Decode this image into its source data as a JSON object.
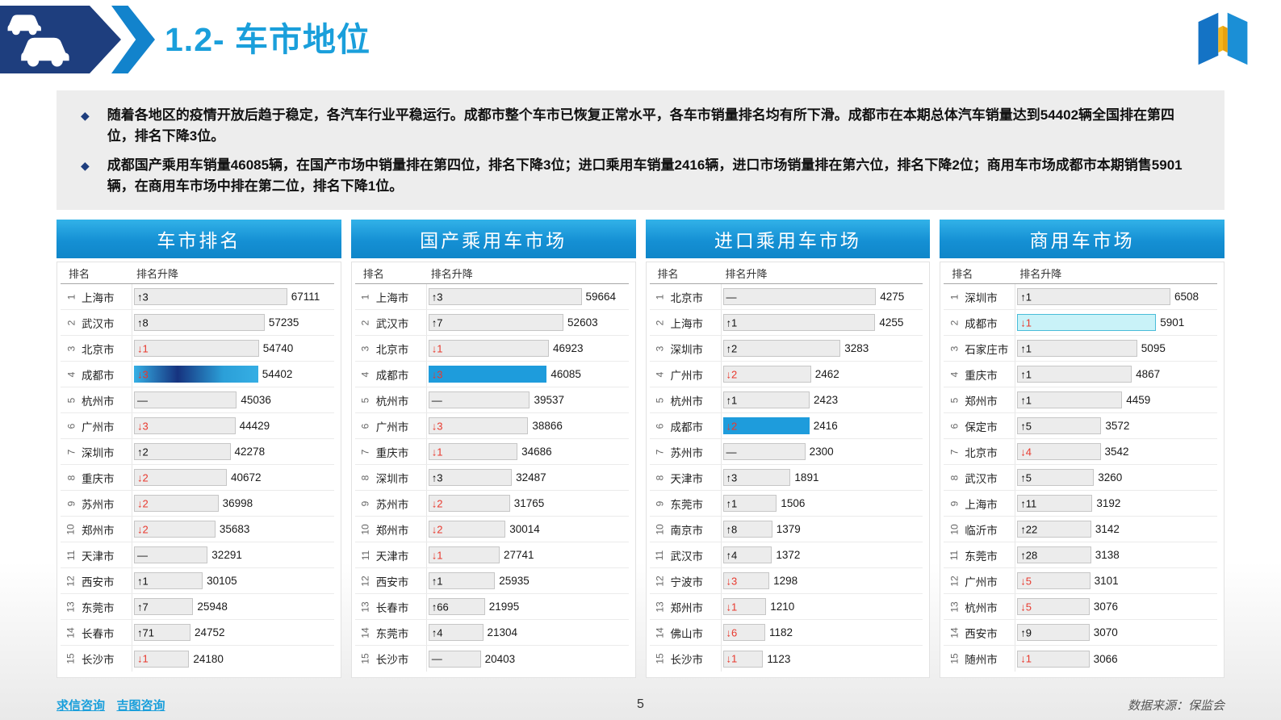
{
  "page": {
    "title": "1.2- 车市地位",
    "page_number": "5",
    "source_note": "数据来源：保监会",
    "footer_links": [
      "求信咨询",
      "吉图咨询"
    ]
  },
  "summary": {
    "bullet_marker": "◆",
    "bullets": [
      "随着各地区的疫情开放后趋于稳定，各汽车行业平稳运行。成都市整个车市已恢复正常水平，各车市销量排名均有所下滑。成都市在本期总体汽车销量达到54402辆全国排在第四位，排名下降3位。",
      "成都国产乘用车销量46085辆，在国产市场中销量排在第四位，排名下降3位；进口乘用车销量2416辆，进口市场销量排在第六位，排名下降2位；商用车市场成都市本期销售5901辆，在商用车市场中排在第二位，排名下降1位。"
    ]
  },
  "columns": {
    "rank": "排名",
    "change": "排名升降"
  },
  "colors": {
    "accent_blue": "#1A9FDB",
    "navy": "#1E3E7E",
    "panel_header_top": "#32B2E8",
    "panel_header_bottom": "#0F86C9",
    "down_red": "#E8392E",
    "bar_gray": "#ECECEC",
    "highlight_blue": "#1E9CDC",
    "highlight_cyan": "#C9F2F8"
  },
  "chart_data": [
    {
      "type": "bar",
      "orientation": "horizontal",
      "title": "车市排名",
      "categories": [
        "上海市",
        "武汉市",
        "北京市",
        "成都市",
        "杭州市",
        "广州市",
        "深圳市",
        "重庆市",
        "苏州市",
        "郑州市",
        "天津市",
        "西安市",
        "东莞市",
        "长春市",
        "长沙市"
      ],
      "values": [
        67111,
        57235,
        54740,
        54402,
        45036,
        44429,
        42278,
        40672,
        36998,
        35683,
        32291,
        30105,
        25948,
        24752,
        24180
      ],
      "rank_changes": [
        "↑3",
        "↑8",
        "↓1",
        "↓3",
        "—",
        "↓3",
        "↑2",
        "↓2",
        "↓2",
        "↓2",
        "—",
        "↑1",
        "↑7",
        "↑71",
        "↓1"
      ],
      "highlight_city": "成都市",
      "highlight_style": "gradient",
      "xlim": [
        0,
        67111
      ],
      "legend_position": "none",
      "grid": false
    },
    {
      "type": "bar",
      "orientation": "horizontal",
      "title": "国产乘用车市场",
      "categories": [
        "上海市",
        "武汉市",
        "北京市",
        "成都市",
        "杭州市",
        "广州市",
        "重庆市",
        "深圳市",
        "苏州市",
        "郑州市",
        "天津市",
        "西安市",
        "长春市",
        "东莞市",
        "长沙市"
      ],
      "values": [
        59664,
        52603,
        46923,
        46085,
        39537,
        38866,
        34686,
        32487,
        31765,
        30014,
        27741,
        25935,
        21995,
        21304,
        20403
      ],
      "rank_changes": [
        "↑3",
        "↑7",
        "↓1",
        "↓3",
        "—",
        "↓3",
        "↓1",
        "↑3",
        "↓2",
        "↓2",
        "↓1",
        "↑1",
        "↑66",
        "↑4",
        "—"
      ],
      "highlight_city": "成都市",
      "highlight_style": "blue",
      "xlim": [
        0,
        59664
      ],
      "legend_position": "none",
      "grid": false
    },
    {
      "type": "bar",
      "orientation": "horizontal",
      "title": "进口乘用车市场",
      "categories": [
        "北京市",
        "上海市",
        "深圳市",
        "广州市",
        "杭州市",
        "成都市",
        "苏州市",
        "天津市",
        "东莞市",
        "南京市",
        "武汉市",
        "宁波市",
        "郑州市",
        "佛山市",
        "长沙市"
      ],
      "values": [
        4275,
        4255,
        3283,
        2462,
        2423,
        2416,
        2300,
        1891,
        1506,
        1379,
        1372,
        1298,
        1210,
        1182,
        1123
      ],
      "rank_changes": [
        "—",
        "↑1",
        "↑2",
        "↓2",
        "↑1",
        "↓2",
        "—",
        "↑3",
        "↑1",
        "↑8",
        "↑4",
        "↓3",
        "↓1",
        "↓6",
        "↓1"
      ],
      "highlight_city": "成都市",
      "highlight_style": "blue",
      "xlim": [
        0,
        4275
      ],
      "legend_position": "none",
      "grid": false
    },
    {
      "type": "bar",
      "orientation": "horizontal",
      "title": "商用车市场",
      "categories": [
        "深圳市",
        "成都市",
        "石家庄市",
        "重庆市",
        "郑州市",
        "保定市",
        "北京市",
        "武汉市",
        "上海市",
        "临沂市",
        "东莞市",
        "广州市",
        "杭州市",
        "西安市",
        "随州市"
      ],
      "values": [
        6508,
        5901,
        5095,
        4867,
        4459,
        3572,
        3542,
        3260,
        3192,
        3142,
        3138,
        3101,
        3076,
        3070,
        3066
      ],
      "rank_changes": [
        "↑1",
        "↓1",
        "↑1",
        "↑1",
        "↑1",
        "↑5",
        "↓4",
        "↑5",
        "↑11",
        "↑22",
        "↑28",
        "↓5",
        "↓5",
        "↑9",
        "↓1"
      ],
      "highlight_city": "成都市",
      "highlight_style": "cyan",
      "xlim": [
        0,
        6508
      ],
      "legend_position": "none",
      "grid": false
    }
  ]
}
